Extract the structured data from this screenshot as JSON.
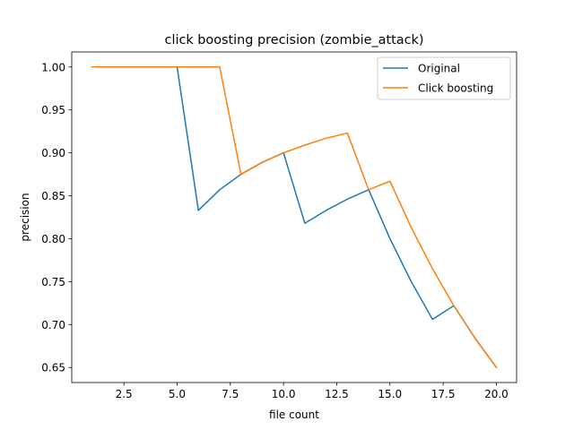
{
  "chart_data": {
    "type": "line",
    "title": "click boosting precision (zombie_attack)",
    "xlabel": "file count",
    "ylabel": "precision",
    "xlim": [
      0.05,
      20.95
    ],
    "ylim": [
      0.6325,
      1.0175
    ],
    "xticks": [
      2.5,
      5.0,
      7.5,
      10.0,
      12.5,
      15.0,
      17.5,
      20.0
    ],
    "xtick_labels": [
      "2.5",
      "5.0",
      "7.5",
      "10.0",
      "12.5",
      "15.0",
      "17.5",
      "20.0"
    ],
    "yticks": [
      0.65,
      0.7,
      0.75,
      0.8,
      0.85,
      0.9,
      0.95,
      1.0
    ],
    "ytick_labels": [
      "0.65",
      "0.70",
      "0.75",
      "0.80",
      "0.85",
      "0.90",
      "0.95",
      "1.00"
    ],
    "grid": false,
    "legend_position": "top-right",
    "x": [
      1,
      2,
      3,
      4,
      5,
      6,
      7,
      8,
      9,
      10,
      11,
      12,
      13,
      14,
      15,
      16,
      17,
      18,
      19,
      20
    ],
    "series": [
      {
        "name": "Original",
        "color": "#1f77b4",
        "values": [
          1.0,
          1.0,
          1.0,
          1.0,
          1.0,
          0.833,
          0.857,
          0.875,
          0.889,
          0.9,
          0.818,
          0.833,
          0.846,
          0.857,
          0.8,
          0.75,
          0.706,
          0.722,
          0.684,
          0.65
        ]
      },
      {
        "name": "Click boosting",
        "color": "#ff7f0e",
        "values": [
          1.0,
          1.0,
          1.0,
          1.0,
          1.0,
          1.0,
          1.0,
          0.875,
          0.889,
          0.9,
          0.909,
          0.917,
          0.923,
          0.857,
          0.867,
          0.813,
          0.765,
          0.722,
          0.684,
          0.65
        ]
      }
    ]
  }
}
